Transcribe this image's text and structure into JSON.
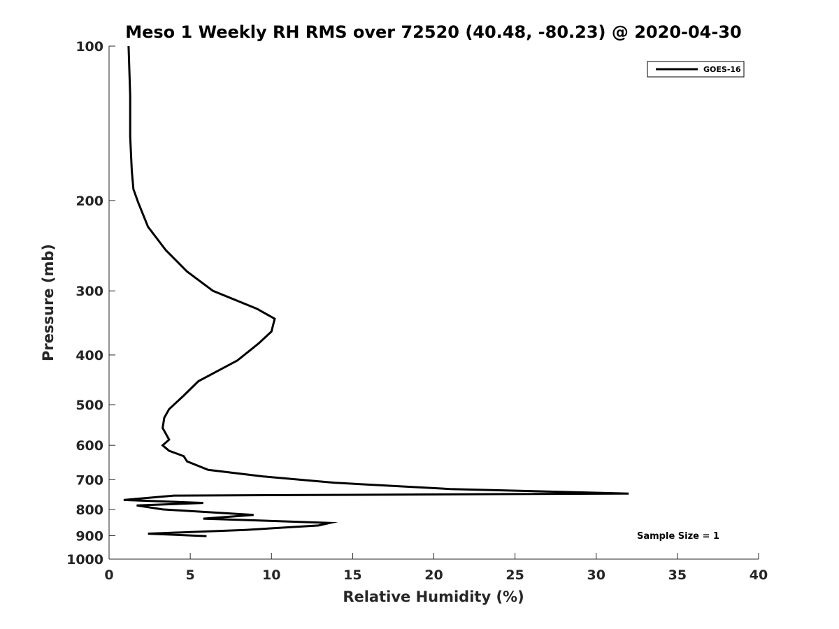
{
  "chart_data": {
    "type": "line",
    "title": "Meso 1 Weekly RH RMS over 72520 (40.48, -80.23) @ 2020-04-30",
    "xlabel": "Relative Humidity (%)",
    "ylabel": "Pressure (mb)",
    "xlim": [
      0,
      40
    ],
    "ylim": [
      100,
      1000
    ],
    "y_scale": "log",
    "y_reversed": true,
    "grid": false,
    "legend_position": "top-right",
    "x_ticks": [
      "0",
      "5",
      "10",
      "15",
      "20",
      "25",
      "30",
      "35",
      "40"
    ],
    "y_ticks": [
      "100",
      "200",
      "300",
      "400",
      "500",
      "600",
      "700",
      "800",
      "900",
      "1000"
    ],
    "series": [
      {
        "name": "GOES-16",
        "color": "#000000",
        "points": [
          [
            1.2,
            100
          ],
          [
            1.3,
            125
          ],
          [
            1.3,
            150
          ],
          [
            1.4,
            175
          ],
          [
            1.5,
            190
          ],
          [
            1.8,
            202
          ],
          [
            2.4,
            225
          ],
          [
            3.5,
            250
          ],
          [
            4.8,
            275
          ],
          [
            6.4,
            300
          ],
          [
            9.1,
            325
          ],
          [
            10.2,
            340
          ],
          [
            10.0,
            360
          ],
          [
            9.2,
            380
          ],
          [
            7.9,
            410
          ],
          [
            5.5,
            450
          ],
          [
            4.6,
            480
          ],
          [
            3.7,
            510
          ],
          [
            3.4,
            530
          ],
          [
            3.3,
            555
          ],
          [
            3.5,
            570
          ],
          [
            3.7,
            585
          ],
          [
            3.3,
            600
          ],
          [
            3.7,
            615
          ],
          [
            4.6,
            630
          ],
          [
            4.8,
            645
          ],
          [
            6.1,
            670
          ],
          [
            9.5,
            690
          ],
          [
            13.9,
            710
          ],
          [
            21.0,
            730
          ],
          [
            32.0,
            745
          ],
          [
            4.0,
            752
          ],
          [
            0.9,
            767
          ],
          [
            5.8,
            777
          ],
          [
            1.7,
            786
          ],
          [
            3.3,
            800
          ],
          [
            8.9,
            820
          ],
          [
            5.8,
            834
          ],
          [
            13.6,
            850
          ],
          [
            12.9,
            860
          ],
          [
            8.4,
            877
          ],
          [
            2.4,
            892
          ],
          [
            6.0,
            902
          ]
        ]
      }
    ],
    "annotations": [
      "Sample Size = 1"
    ]
  }
}
